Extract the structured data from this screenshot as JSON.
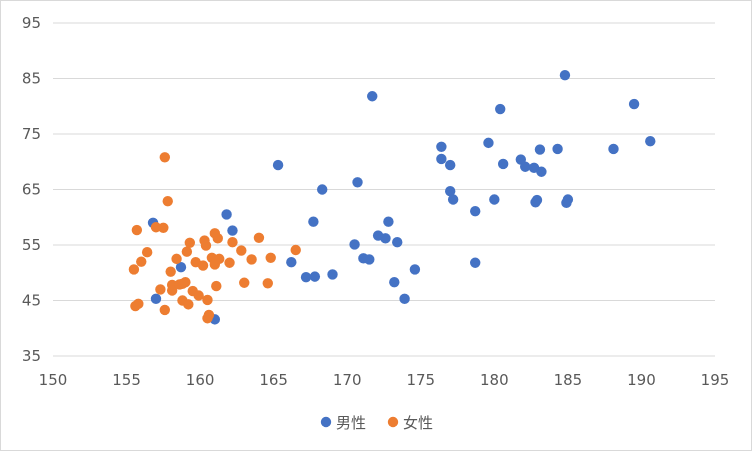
{
  "chart_data": {
    "type": "scatter",
    "title": "",
    "xlabel": "",
    "ylabel": "",
    "xlim": [
      150,
      195
    ],
    "ylim": [
      35,
      95
    ],
    "xticks": [
      150,
      155,
      160,
      165,
      170,
      175,
      180,
      185,
      190,
      195
    ],
    "yticks": [
      35,
      45,
      55,
      65,
      75,
      85,
      95
    ],
    "grid": {
      "horizontal": true,
      "vertical": false
    },
    "legend_position": "bottom",
    "series": [
      {
        "name": "男性",
        "color": "#4472C4",
        "points": [
          [
            156.8,
            59.0
          ],
          [
            157.0,
            45.3
          ],
          [
            158.7,
            51.0
          ],
          [
            161.0,
            41.6
          ],
          [
            161.8,
            60.5
          ],
          [
            162.2,
            57.6
          ],
          [
            165.3,
            69.4
          ],
          [
            166.2,
            51.9
          ],
          [
            167.2,
            49.2
          ],
          [
            167.8,
            49.3
          ],
          [
            167.7,
            59.2
          ],
          [
            168.3,
            65.0
          ],
          [
            169.0,
            49.7
          ],
          [
            170.5,
            55.1
          ],
          [
            170.7,
            66.3
          ],
          [
            171.1,
            52.6
          ],
          [
            171.5,
            52.4
          ],
          [
            171.7,
            81.8
          ],
          [
            172.1,
            56.7
          ],
          [
            172.6,
            56.2
          ],
          [
            172.8,
            59.2
          ],
          [
            173.2,
            48.3
          ],
          [
            173.4,
            55.5
          ],
          [
            173.9,
            45.3
          ],
          [
            174.6,
            50.6
          ],
          [
            176.4,
            72.7
          ],
          [
            176.4,
            70.5
          ],
          [
            177.0,
            69.4
          ],
          [
            177.0,
            64.7
          ],
          [
            177.2,
            63.2
          ],
          [
            178.7,
            61.1
          ],
          [
            178.7,
            51.8
          ],
          [
            179.6,
            73.4
          ],
          [
            180.0,
            63.2
          ],
          [
            180.4,
            79.5
          ],
          [
            180.6,
            69.6
          ],
          [
            181.8,
            70.4
          ],
          [
            182.1,
            69.1
          ],
          [
            182.7,
            68.9
          ],
          [
            182.8,
            62.7
          ],
          [
            182.9,
            63.1
          ],
          [
            183.1,
            72.2
          ],
          [
            183.2,
            68.2
          ],
          [
            184.3,
            72.3
          ],
          [
            184.8,
            85.6
          ],
          [
            184.9,
            62.6
          ],
          [
            185.0,
            63.2
          ],
          [
            188.1,
            72.3
          ],
          [
            189.5,
            80.4
          ],
          [
            190.6,
            73.7
          ]
        ]
      },
      {
        "name": "女性",
        "color": "#ED7D31",
        "points": [
          [
            155.5,
            50.6
          ],
          [
            155.6,
            44.0
          ],
          [
            155.7,
            57.7
          ],
          [
            155.8,
            44.4
          ],
          [
            156.0,
            52.0
          ],
          [
            156.4,
            53.7
          ],
          [
            157.0,
            58.2
          ],
          [
            157.3,
            47.0
          ],
          [
            157.5,
            58.1
          ],
          [
            157.6,
            43.3
          ],
          [
            157.6,
            70.8
          ],
          [
            157.8,
            62.9
          ],
          [
            158.0,
            50.2
          ],
          [
            158.1,
            47.8
          ],
          [
            158.1,
            46.8
          ],
          [
            158.4,
            52.5
          ],
          [
            158.6,
            47.9
          ],
          [
            158.8,
            48.0
          ],
          [
            158.8,
            45.0
          ],
          [
            159.0,
            48.3
          ],
          [
            159.1,
            53.8
          ],
          [
            159.2,
            44.3
          ],
          [
            159.3,
            55.4
          ],
          [
            159.5,
            46.7
          ],
          [
            159.7,
            51.9
          ],
          [
            159.9,
            45.9
          ],
          [
            160.2,
            51.3
          ],
          [
            160.3,
            55.8
          ],
          [
            160.4,
            54.9
          ],
          [
            160.5,
            41.8
          ],
          [
            160.6,
            42.4
          ],
          [
            160.5,
            45.1
          ],
          [
            160.8,
            52.7
          ],
          [
            161.0,
            51.5
          ],
          [
            161.0,
            57.1
          ],
          [
            161.1,
            47.6
          ],
          [
            161.2,
            56.2
          ],
          [
            161.3,
            52.5
          ],
          [
            162.0,
            51.8
          ],
          [
            162.2,
            55.5
          ],
          [
            162.8,
            54.0
          ],
          [
            163.0,
            48.2
          ],
          [
            163.5,
            52.4
          ],
          [
            164.0,
            56.3
          ],
          [
            164.6,
            48.1
          ],
          [
            164.8,
            52.7
          ],
          [
            166.5,
            54.1
          ]
        ]
      }
    ]
  }
}
